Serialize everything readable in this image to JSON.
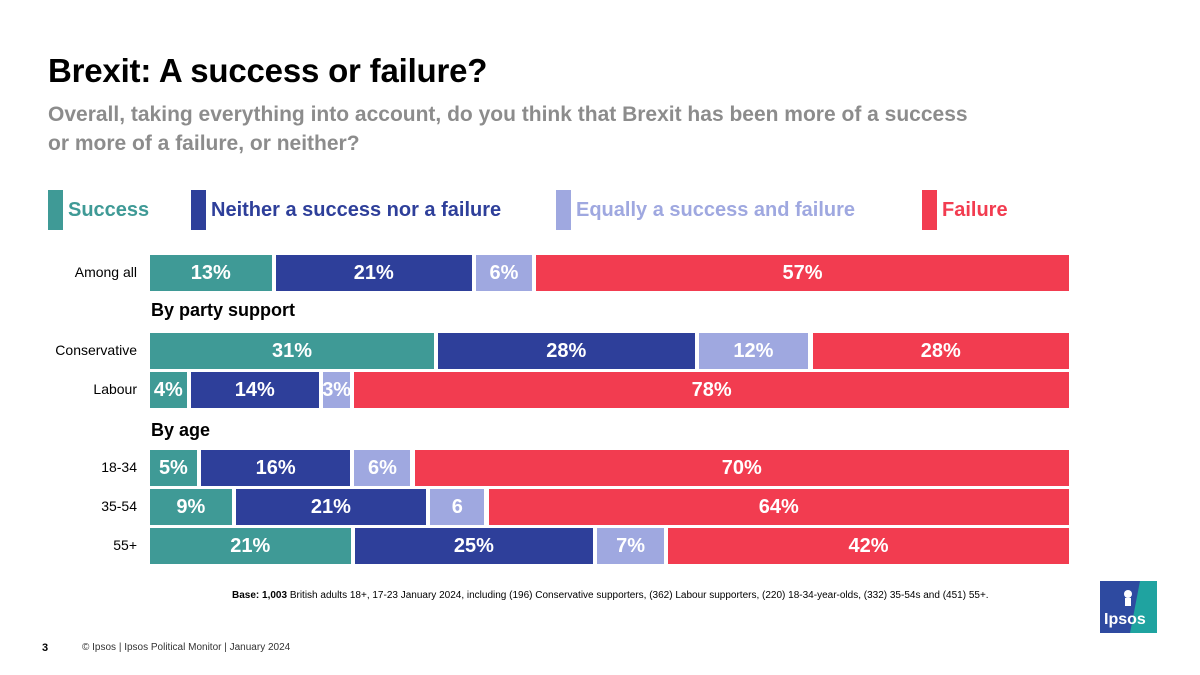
{
  "title": "Brexit: A success or failure?",
  "subtitle": "Overall, taking everything into account, do you think that Brexit has been more of a success or more of a failure, or neither?",
  "legend": [
    {
      "label": "Success",
      "color": "#3f9a96"
    },
    {
      "label": "Neither a success nor a failure",
      "color": "#2e3f9a"
    },
    {
      "label": "Equally a success and failure",
      "color": "#9fa8e0"
    },
    {
      "label": "Failure",
      "color": "#f23c50"
    }
  ],
  "sections": {
    "party": "By party support",
    "age": "By age"
  },
  "chart_data": {
    "type": "bar",
    "orientation": "horizontal",
    "stacked": true,
    "title": "Brexit: A success or failure?",
    "categories": [
      "Among all",
      "Conservative",
      "Labour",
      "18-34",
      "35-54",
      "55+"
    ],
    "series": [
      {
        "name": "Success",
        "values": [
          13,
          31,
          4,
          5,
          9,
          21
        ],
        "labels": [
          "13%",
          "31%",
          "4%",
          "5%",
          "9%",
          "21%"
        ]
      },
      {
        "name": "Neither a success nor a failure",
        "values": [
          21,
          28,
          14,
          16,
          21,
          25
        ],
        "labels": [
          "21%",
          "28%",
          "14%",
          "16%",
          "21%",
          "25%"
        ]
      },
      {
        "name": "Equally a success and failure",
        "values": [
          6,
          12,
          3,
          6,
          6,
          7
        ],
        "labels": [
          "6%",
          "12%",
          "3%",
          "6%",
          "6",
          "7%"
        ]
      },
      {
        "name": "Failure",
        "values": [
          57,
          28,
          78,
          70,
          64,
          42
        ],
        "labels": [
          "57%",
          "28%",
          "78%",
          "70%",
          "64%",
          "42%"
        ]
      }
    ],
    "xlim": [
      0,
      100
    ]
  },
  "base_note": {
    "bold": "Base: 1,003",
    "text": " British adults 18+, 17-23 January 2024, including (196) Conservative supporters, (362) Labour supporters, (220) 18-34-year-olds, (332) 35-54s and (451) 55+."
  },
  "page_number": "3",
  "footer": "© Ipsos | Ipsos Political Monitor | January 2024",
  "logo_text": "Ipsos"
}
